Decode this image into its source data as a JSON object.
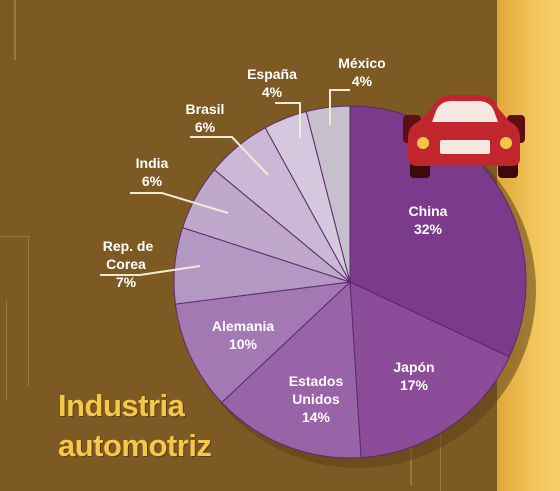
{
  "title_lines": [
    "Industria",
    "automotriz"
  ],
  "colors": {
    "background": "#7d5a24",
    "accent_panel": "#f2c65c",
    "title": "#f6c84a",
    "car": "#c0262b",
    "slice_china": "#7b3a8c",
    "slice_japon": "#8b4d9a",
    "slice_estados_unidos": "#9963a8",
    "slice_alemania": "#a479b3",
    "slice_corea": "#b498c4",
    "slice_india": "#c0a8cc",
    "slice_brasil": "#cbb8d6",
    "slice_espana": "#d5c8de",
    "slice_mexico": "#c6c0cc"
  },
  "car_icon": "car-icon",
  "chart_data": {
    "type": "pie",
    "title": "Industria automotriz",
    "start_angle_deg": 0,
    "direction": "clockwise",
    "legend": "none",
    "slices": [
      {
        "key": "china",
        "name": "China",
        "value": 32,
        "label": "32%"
      },
      {
        "key": "japon",
        "name": "Japón",
        "value": 17,
        "label": "17%"
      },
      {
        "key": "estados_unidos",
        "name": "Estados Unidos",
        "value": 14,
        "label": "14%"
      },
      {
        "key": "alemania",
        "name": "Alemania",
        "value": 10,
        "label": "10%"
      },
      {
        "key": "corea",
        "name": "Rep. de Corea",
        "value": 7,
        "label": "7%"
      },
      {
        "key": "india",
        "name": "India",
        "value": 6,
        "label": "6%"
      },
      {
        "key": "brasil",
        "name": "Brasil",
        "value": 6,
        "label": "6%"
      },
      {
        "key": "espana",
        "name": "España",
        "value": 4,
        "label": "4%"
      },
      {
        "key": "mexico",
        "name": "México",
        "value": 4,
        "label": "4%"
      }
    ]
  }
}
